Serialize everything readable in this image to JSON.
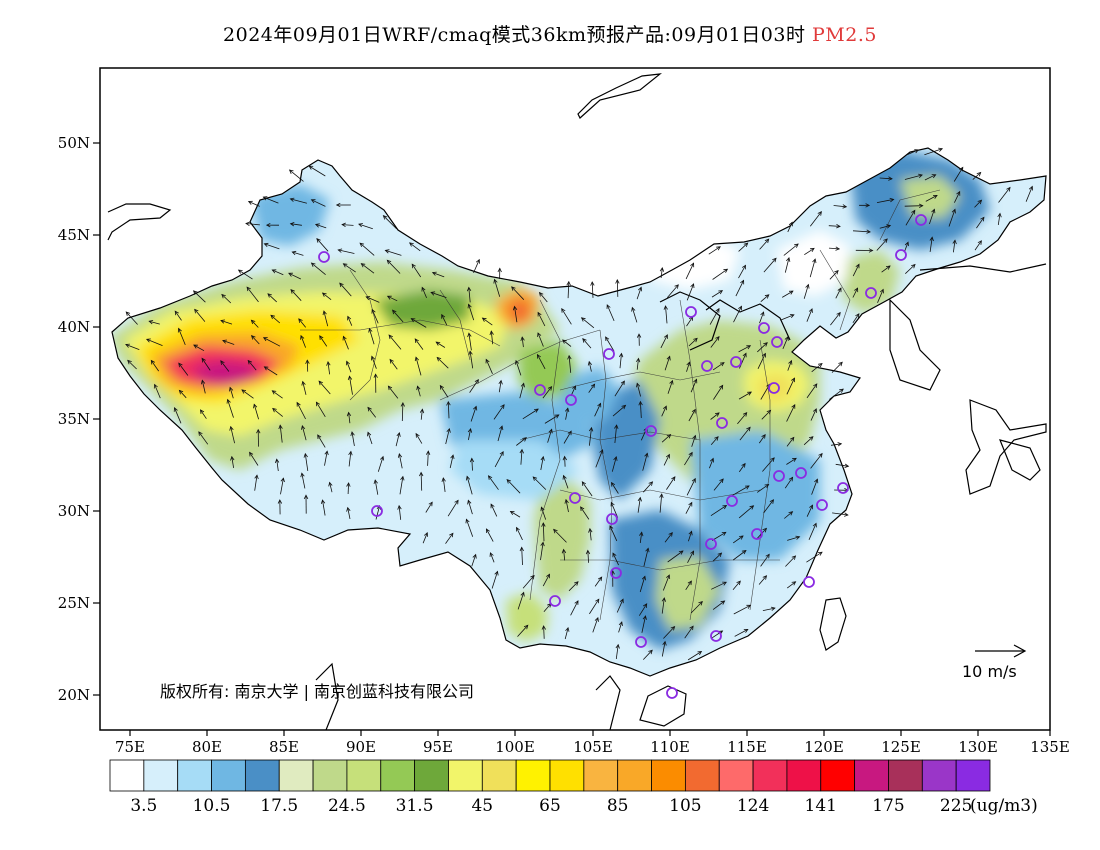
{
  "title": {
    "main": "2024年09月01日WRF/cmaq模式36km预报产品:09月01日03时",
    "variable": "PM2.5"
  },
  "axes": {
    "lat_labels": [
      "50N",
      "45N",
      "40N",
      "35N",
      "30N",
      "25N",
      "20N"
    ],
    "lon_labels": [
      "75E",
      "80E",
      "85E",
      "90E",
      "95E",
      "100E",
      "105E",
      "110E",
      "115E",
      "120E",
      "125E",
      "130E",
      "135E"
    ]
  },
  "copyright": "版权所有: 南京大学 | 南京创蓝科技有限公司",
  "wind_reference": "10 m/s",
  "colorbar": {
    "unit": "(ug/m3)",
    "labels": [
      "3.5",
      "10.5",
      "17.5",
      "24.5",
      "31.5",
      "45",
      "65",
      "85",
      "105",
      "124",
      "141",
      "175",
      "225"
    ],
    "colors": [
      "#ffffff",
      "#d6effb",
      "#a6dcf6",
      "#6fb7e3",
      "#4a8fc6",
      "#e0ebc0",
      "#bfd98a",
      "#c6e07a",
      "#94c955",
      "#6ea83a",
      "#f2f56a",
      "#f0e05a",
      "#fff200",
      "#ffe000",
      "#f9b440",
      "#f9a828",
      "#fb8c00",
      "#f26a30",
      "#fe6a6a",
      "#f2305a",
      "#ee1148",
      "#ff0000",
      "#c81880",
      "#a8305a",
      "#9a36c8",
      "#8a2be2"
    ]
  },
  "legend_icons": {
    "station": "station-circle-icon",
    "wind": "wind-arrow-icon"
  }
}
